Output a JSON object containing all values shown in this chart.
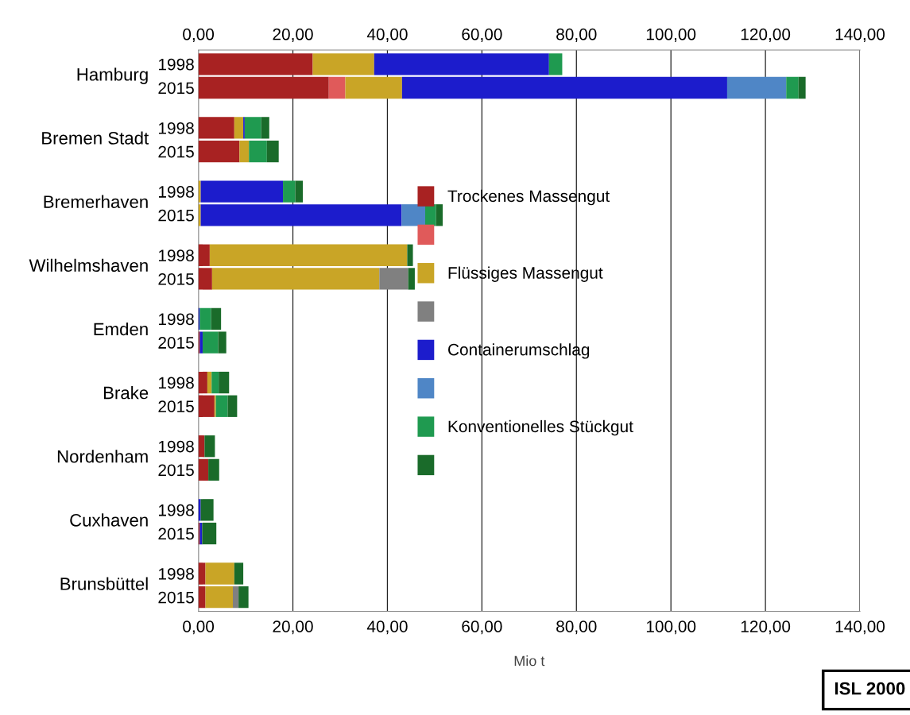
{
  "chart_data": {
    "type": "bar",
    "orientation": "horizontal",
    "stacked": true,
    "xlabel": "Mio t",
    "categories": [
      "1998",
      "2015",
      "1998",
      "2015",
      "1998",
      "2015",
      "1998",
      "2015",
      "1998",
      "2015",
      "1998",
      "2015",
      "1998",
      "2015",
      "1998",
      "2015",
      "1998",
      "2015"
    ],
    "annotations": [
      "Hamburg",
      "Bremen Stadt",
      "Bremerhaven",
      "Wilhelmshaven",
      "Emden",
      "Brake",
      "Nordenham",
      "Cuxhaven",
      "Brunsbüttel",
      "ISL 2000"
    ],
    "series": [
      {
        "name": "Trockenes Massengut",
        "color": "#a82222",
        "values": [
          24.2,
          27.6,
          7.6,
          8.7,
          0,
          0,
          2.4,
          2.9,
          0,
          0.3,
          1.9,
          3.4,
          1.3,
          2.1,
          0,
          0.3,
          1.5,
          1.5
        ]
      },
      {
        "color": "#e05a5a",
        "values": [
          0,
          3.5,
          0,
          0,
          0,
          0,
          0,
          0,
          0,
          0,
          0,
          0,
          0,
          0,
          0,
          0,
          0,
          0
        ]
      },
      {
        "name": "Flüssiges Massengut",
        "color": "#c9a526",
        "values": [
          13,
          12,
          1.9,
          2.0,
          0.5,
          0.5,
          41.8,
          35.4,
          0,
          0,
          0.9,
          0.3,
          0,
          0,
          0,
          0,
          6.1,
          5.8
        ]
      },
      {
        "color": "#808080",
        "values": [
          0,
          0,
          0,
          0,
          0,
          0,
          0,
          6.1,
          0,
          0,
          0,
          0,
          0,
          0,
          0,
          0,
          0,
          1.2
        ]
      },
      {
        "name": "Containerumschlag",
        "color": "#1c1ccc",
        "values": [
          37,
          68.8,
          0.3,
          0,
          17.4,
          42.5,
          0,
          0,
          0.3,
          0.6,
          0,
          0,
          0,
          0,
          0.5,
          0.5,
          0,
          0
        ]
      },
      {
        "color": "#4f86c6",
        "values": [
          0,
          12.5,
          0,
          0,
          0,
          5.0,
          0,
          0,
          0,
          0,
          0,
          0,
          0,
          0,
          0,
          0,
          0,
          0
        ]
      },
      {
        "name": "Konventionelles Stückgut",
        "color": "#1f9a50",
        "values": [
          2.8,
          2.6,
          3.5,
          3.8,
          2.6,
          2.3,
          0,
          0,
          2.4,
          3.3,
          1.5,
          2.5,
          0,
          0,
          0,
          0,
          0,
          0
        ]
      },
      {
        "color": "#1a6b2a",
        "values": [
          0,
          1.5,
          1.7,
          2.5,
          1.6,
          1.4,
          1.2,
          1.4,
          2.1,
          1.7,
          2.2,
          2.0,
          2.2,
          2.3,
          2.7,
          3.0,
          1.9,
          2.1
        ]
      }
    ],
    "xlim": [
      0,
      140
    ],
    "xticks": [
      {
        "value": 0,
        "label": "0,00"
      },
      {
        "value": 20,
        "label": "20,00"
      },
      {
        "value": 40,
        "label": "40,00"
      },
      {
        "value": 60,
        "label": "60,00"
      },
      {
        "value": 80,
        "label": "80,00"
      },
      {
        "value": 100,
        "label": "100,00"
      },
      {
        "value": 120,
        "label": "120,00"
      },
      {
        "value": 140,
        "label": "140,00"
      }
    ],
    "x2lim": [
      0,
      140
    ],
    "x2ticks": [
      {
        "value": 0,
        "label": "0,00"
      },
      {
        "value": 20,
        "label": "20,00"
      },
      {
        "value": 40,
        "label": "40,00"
      },
      {
        "value": 60,
        "label": "60,00"
      },
      {
        "value": 80,
        "label": "80,00"
      },
      {
        "value": 100,
        "label": "100,00"
      },
      {
        "value": 120,
        "label": "120,00"
      },
      {
        "value": 140,
        "label": "140,00"
      }
    ],
    "grid": "x",
    "legend": "right"
  }
}
